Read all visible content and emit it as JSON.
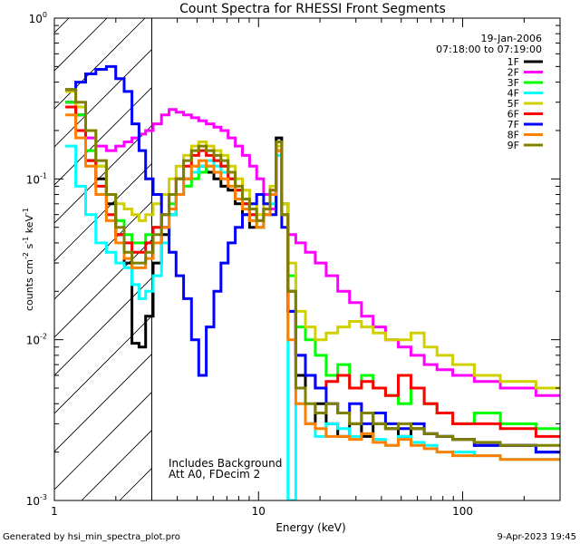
{
  "footer": {
    "generated_by": "Generated by hsi_min_spectra_plot.pro",
    "timestamp": "9-Apr-2023 19:45"
  },
  "chart_data": {
    "type": "line",
    "title": "Count Spectra for RHESSI Front Segments",
    "xlabel": "Energy (keV)",
    "ylabel_main": "counts cm",
    "ylabel_exp1": "-2",
    "ylabel_s": " s",
    "ylabel_exp2": "-1",
    "ylabel_kev": " keV",
    "ylabel_exp3": "-1",
    "x_scale": "log",
    "y_scale": "log",
    "xlim": [
      1.0,
      300.0
    ],
    "ylim": [
      0.001,
      1.0
    ],
    "x_ticks": [
      {
        "value": 1,
        "label": "1"
      },
      {
        "value": 10,
        "label": "10"
      },
      {
        "value": 100,
        "label": "100"
      }
    ],
    "y_ticks": [
      {
        "value": 1.0,
        "base": "10",
        "exp": "0"
      },
      {
        "value": 0.1,
        "base": "10",
        "exp": "-1"
      },
      {
        "value": 0.01,
        "base": "10",
        "exp": "-2"
      },
      {
        "value": 0.001,
        "base": "10",
        "exp": "-3"
      }
    ],
    "attenuator_cutoff_kev": 3.0,
    "date": "19-Jan-2006",
    "time_range": "07:18:00 to 07:19:00",
    "annotations": [
      "Includes Background",
      "Att A0, FDecim 2"
    ],
    "legend_position": "top-right",
    "series": [
      {
        "name": "1F",
        "color": "#000000",
        "values": [
          0.3,
          0.25,
          0.13,
          0.1,
          0.07,
          0.045,
          0.03,
          0.0095,
          0.009,
          0.014,
          0.03,
          0.045,
          0.06,
          0.08,
          0.1,
          0.11,
          0.12,
          0.11,
          0.1,
          0.09,
          0.085,
          0.07,
          0.06,
          0.05,
          0.05,
          0.06,
          0.08,
          0.18,
          0.07,
          0.02,
          0.006,
          0.003,
          0.004,
          0.003,
          0.0025,
          0.003,
          0.0025,
          0.003,
          0.0028,
          0.0025,
          0.0028,
          0.0026,
          0.0025,
          0.0024,
          0.0022,
          0.0022,
          0.002
        ]
      },
      {
        "name": "2F",
        "color": "#ff00ff",
        "values": [
          0.3,
          0.25,
          0.18,
          0.16,
          0.15,
          0.16,
          0.17,
          0.18,
          0.19,
          0.2,
          0.22,
          0.25,
          0.27,
          0.26,
          0.25,
          0.24,
          0.23,
          0.22,
          0.21,
          0.2,
          0.18,
          0.16,
          0.14,
          0.12,
          0.1,
          0.08,
          0.065,
          0.15,
          0.06,
          0.045,
          0.04,
          0.035,
          0.03,
          0.025,
          0.02,
          0.017,
          0.014,
          0.012,
          0.01,
          0.009,
          0.008,
          0.007,
          0.0065,
          0.006,
          0.0055,
          0.005,
          0.0045
        ]
      },
      {
        "name": "3F",
        "color": "#00ff00",
        "values": [
          0.3,
          0.25,
          0.15,
          0.12,
          0.08,
          0.055,
          0.045,
          0.04,
          0.04,
          0.045,
          0.05,
          0.06,
          0.07,
          0.08,
          0.09,
          0.1,
          0.11,
          0.12,
          0.13,
          0.12,
          0.1,
          0.085,
          0.07,
          0.06,
          0.05,
          0.06,
          0.08,
          0.15,
          0.06,
          0.025,
          0.012,
          0.01,
          0.008,
          0.006,
          0.007,
          0.005,
          0.006,
          0.005,
          0.0045,
          0.004,
          0.005,
          0.004,
          0.0035,
          0.003,
          0.0035,
          0.003,
          0.0028
        ]
      },
      {
        "name": "4F",
        "color": "#00ffff",
        "values": [
          0.16,
          0.09,
          0.06,
          0.04,
          0.035,
          0.03,
          0.028,
          0.022,
          0.018,
          0.02,
          0.025,
          0.04,
          0.06,
          0.08,
          0.1,
          0.11,
          0.12,
          0.13,
          0.12,
          0.11,
          0.1,
          0.085,
          0.07,
          0.06,
          0.05,
          0.06,
          0.07,
          0.14,
          0.06,
          0.001,
          0.004,
          0.003,
          0.0025,
          0.003,
          0.0028,
          0.0025,
          0.0026,
          0.0024,
          0.0022,
          0.0025,
          0.0023,
          0.0022,
          0.002,
          0.002,
          0.0019,
          0.0018,
          0.0018
        ]
      },
      {
        "name": "5F",
        "color": "#d0d000",
        "values": [
          0.35,
          0.28,
          0.2,
          0.12,
          0.08,
          0.07,
          0.065,
          0.06,
          0.055,
          0.06,
          0.07,
          0.08,
          0.1,
          0.12,
          0.14,
          0.16,
          0.17,
          0.16,
          0.15,
          0.14,
          0.12,
          0.1,
          0.085,
          0.07,
          0.06,
          0.07,
          0.09,
          0.16,
          0.07,
          0.03,
          0.015,
          0.012,
          0.01,
          0.011,
          0.012,
          0.013,
          0.012,
          0.011,
          0.01,
          0.01,
          0.011,
          0.009,
          0.008,
          0.007,
          0.006,
          0.0055,
          0.005
        ]
      },
      {
        "name": "6F",
        "color": "#ff0000",
        "values": [
          0.28,
          0.2,
          0.13,
          0.09,
          0.06,
          0.045,
          0.04,
          0.035,
          0.035,
          0.04,
          0.05,
          0.06,
          0.08,
          0.1,
          0.12,
          0.14,
          0.15,
          0.14,
          0.13,
          0.12,
          0.1,
          0.085,
          0.07,
          0.06,
          0.055,
          0.065,
          0.085,
          0.17,
          0.06,
          0.015,
          0.008,
          0.006,
          0.005,
          0.0055,
          0.006,
          0.005,
          0.0055,
          0.005,
          0.0045,
          0.006,
          0.005,
          0.004,
          0.0035,
          0.003,
          0.003,
          0.0028,
          0.0025
        ]
      },
      {
        "name": "7F",
        "color": "#0000ff",
        "values": [
          0.36,
          0.4,
          0.45,
          0.48,
          0.5,
          0.42,
          0.35,
          0.22,
          0.15,
          0.1,
          0.08,
          0.05,
          0.035,
          0.025,
          0.018,
          0.01,
          0.006,
          0.012,
          0.02,
          0.03,
          0.04,
          0.05,
          0.06,
          0.07,
          0.08,
          0.07,
          0.06,
          0.15,
          0.05,
          0.015,
          0.008,
          0.006,
          0.005,
          0.004,
          0.0035,
          0.004,
          0.003,
          0.0035,
          0.003,
          0.0028,
          0.003,
          0.0026,
          0.0025,
          0.0024,
          0.0022,
          0.0022,
          0.002
        ]
      },
      {
        "name": "8F",
        "color": "#ff8000",
        "values": [
          0.25,
          0.18,
          0.12,
          0.08,
          0.055,
          0.04,
          0.032,
          0.028,
          0.028,
          0.032,
          0.04,
          0.05,
          0.065,
          0.08,
          0.1,
          0.12,
          0.13,
          0.12,
          0.11,
          0.1,
          0.09,
          0.075,
          0.065,
          0.055,
          0.05,
          0.06,
          0.08,
          0.15,
          0.06,
          0.01,
          0.004,
          0.003,
          0.0028,
          0.0025,
          0.0025,
          0.0024,
          0.0026,
          0.0023,
          0.0022,
          0.0024,
          0.0022,
          0.0021,
          0.002,
          0.0019,
          0.0019,
          0.0018,
          0.0018
        ]
      },
      {
        "name": "9F",
        "color": "#808000",
        "values": [
          0.36,
          0.3,
          0.2,
          0.13,
          0.08,
          0.05,
          0.035,
          0.03,
          0.03,
          0.035,
          0.045,
          0.06,
          0.08,
          0.1,
          0.13,
          0.15,
          0.16,
          0.15,
          0.14,
          0.13,
          0.11,
          0.09,
          0.075,
          0.065,
          0.055,
          0.065,
          0.085,
          0.17,
          0.06,
          0.02,
          0.005,
          0.004,
          0.0035,
          0.004,
          0.0035,
          0.003,
          0.0035,
          0.003,
          0.0028,
          0.003,
          0.0028,
          0.0026,
          0.0025,
          0.0024,
          0.0023,
          0.0022,
          0.0022
        ]
      }
    ],
    "energy_kev": [
      1.2,
      1.35,
      1.5,
      1.7,
      1.9,
      2.1,
      2.3,
      2.5,
      2.7,
      2.9,
      3.2,
      3.5,
      3.8,
      4.1,
      4.5,
      4.9,
      5.3,
      5.8,
      6.3,
      6.8,
      7.4,
      8.0,
      8.7,
      9.4,
      10.2,
      11.0,
      11.8,
      12.6,
      13.4,
      14.5,
      16,
      18,
      20,
      23,
      26,
      30,
      34,
      39,
      45,
      52,
      60,
      70,
      80,
      100,
      130,
      180,
      290
    ]
  }
}
